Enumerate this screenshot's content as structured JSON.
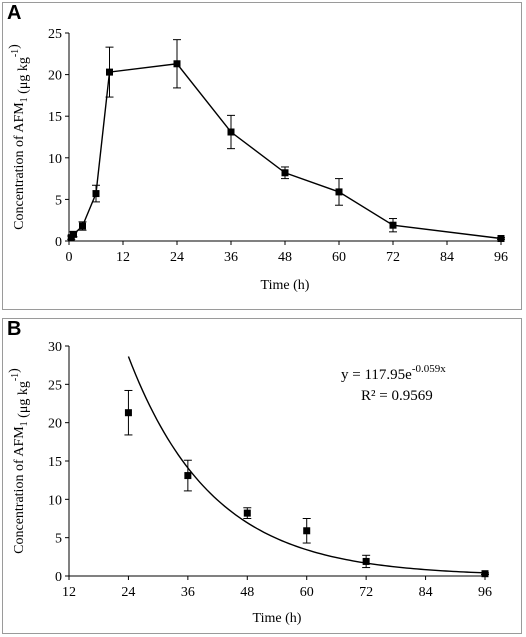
{
  "chart_data": [
    {
      "panel": "A",
      "type": "line",
      "xlabel": "Time (h)",
      "ylabel": "Concentration of AFM1 (μg kg-1)",
      "xlim": [
        0,
        96
      ],
      "ylim": [
        0,
        25
      ],
      "xticks": [
        0,
        12,
        24,
        36,
        48,
        60,
        72,
        84,
        96
      ],
      "yticks": [
        0,
        5,
        10,
        15,
        20,
        25
      ],
      "grid": false,
      "marker": "square",
      "series": [
        {
          "x": [
            0.5,
            1,
            3,
            6,
            9,
            24,
            36,
            48,
            60,
            72,
            96
          ],
          "y": [
            0.4,
            0.8,
            1.8,
            5.7,
            20.3,
            21.3,
            13.1,
            8.2,
            5.9,
            1.9,
            0.3
          ],
          "err": [
            0.2,
            0.3,
            0.5,
            1.0,
            3.0,
            2.9,
            2.0,
            0.7,
            1.6,
            0.8,
            0.1
          ]
        }
      ]
    },
    {
      "panel": "B",
      "type": "scatter",
      "xlabel": "Time (h)",
      "ylabel": "Concentration of AFM1 (μg kg-1)",
      "xlim": [
        12,
        96
      ],
      "ylim": [
        0,
        30
      ],
      "xticks": [
        12,
        24,
        36,
        48,
        60,
        72,
        84,
        96
      ],
      "yticks": [
        0,
        5,
        10,
        15,
        20,
        25,
        30
      ],
      "grid": false,
      "marker": "square",
      "series": [
        {
          "x": [
            24,
            36,
            48,
            60,
            72,
            96
          ],
          "y": [
            21.3,
            13.1,
            8.2,
            5.9,
            1.9,
            0.3
          ],
          "err": [
            2.9,
            2.0,
            0.7,
            1.6,
            0.8,
            0.1
          ]
        }
      ],
      "trendline": {
        "type": "exponential",
        "a": 117.95,
        "b": -0.059,
        "x_start": 24,
        "x_end": 96,
        "equation": "y = 117.95e",
        "equation_exp": "-0.059x",
        "r2": "R² = 0.9569"
      }
    }
  ],
  "labels": {
    "panelA": "A",
    "panelB": "B"
  }
}
